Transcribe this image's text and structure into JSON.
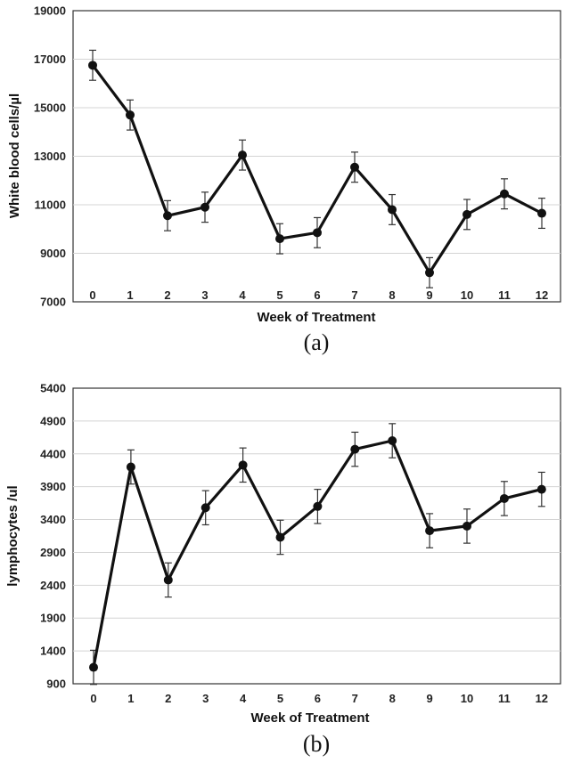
{
  "chart_data": [
    {
      "type": "line",
      "panel_label": "(a)",
      "xlabel": "Week of Treatment",
      "ylabel": "White blood cells/µl",
      "x": [
        0,
        1,
        2,
        3,
        4,
        5,
        6,
        7,
        8,
        9,
        10,
        11,
        12
      ],
      "x_tick_labels": [
        "0",
        "1",
        "2",
        "3",
        "4",
        "5",
        "6",
        "7",
        "8",
        "9",
        "10",
        "11",
        "12"
      ],
      "y_tick_labels": [
        "7000",
        "9000",
        "11000",
        "13000",
        "15000",
        "17000",
        "19000"
      ],
      "y_ticks": [
        7000,
        9000,
        11000,
        13000,
        15000,
        17000,
        19000
      ],
      "ylim": [
        7000,
        19000
      ],
      "grid": true,
      "series": [
        {
          "values": [
            16750,
            14700,
            10550,
            10900,
            13050,
            9600,
            9850,
            12550,
            10800,
            8200,
            10600,
            11450,
            10650
          ],
          "error": [
            620,
            620,
            620,
            620,
            620,
            620,
            620,
            620,
            620,
            620,
            620,
            620,
            620
          ]
        }
      ]
    },
    {
      "type": "line",
      "panel_label": "(b)",
      "xlabel": "Week of Treatment",
      "ylabel": "lymphocytes /ul",
      "x": [
        0,
        1,
        2,
        3,
        4,
        5,
        6,
        7,
        8,
        9,
        10,
        11,
        12
      ],
      "x_tick_labels": [
        "0",
        "1",
        "2",
        "3",
        "4",
        "5",
        "6",
        "7",
        "8",
        "9",
        "10",
        "11",
        "12"
      ],
      "y_tick_labels": [
        "900",
        "1400",
        "1900",
        "2400",
        "2900",
        "3400",
        "3900",
        "4400",
        "4900",
        "5400"
      ],
      "y_ticks": [
        900,
        1400,
        1900,
        2400,
        2900,
        3400,
        3900,
        4400,
        4900,
        5400
      ],
      "ylim": [
        900,
        5400
      ],
      "grid": true,
      "series": [
        {
          "values": [
            1150,
            4200,
            2480,
            3580,
            4230,
            3130,
            3600,
            4470,
            4600,
            3230,
            3300,
            3720,
            3860
          ],
          "error": [
            260,
            260,
            260,
            260,
            260,
            260,
            260,
            260,
            260,
            260,
            260,
            260,
            260
          ]
        }
      ]
    }
  ]
}
